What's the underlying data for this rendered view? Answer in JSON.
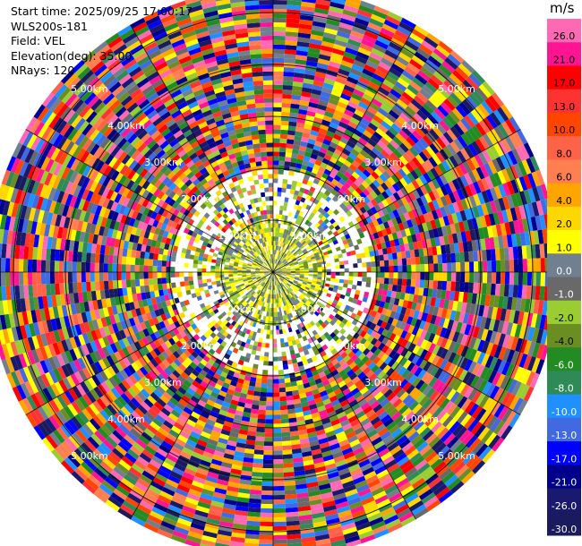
{
  "header": {
    "start_time": "Start time: 2025/09/25 17:00:17",
    "instrument": "WLS200s-181",
    "field": "Field: VEL",
    "elevation": "Elevation(deg): 35.00",
    "nrays": "NRays: 120"
  },
  "chart_data": {
    "type": "heatmap",
    "projection": "polar (PPI)",
    "field": "VEL",
    "nrays": 120,
    "elevation_deg": 35.0,
    "range_rings_km": [
      1.0,
      2.0,
      3.0,
      4.0,
      5.0
    ],
    "range_ring_labels": [
      "1.00km",
      "2.00km",
      "3.00km",
      "4.00km",
      "5.00km"
    ],
    "max_range_km": 5.5,
    "colorbar": {
      "unit": "m/s",
      "ticks": [
        "26.0",
        "21.0",
        "17.0",
        "13.0",
        "10.0",
        "8.0",
        "6.0",
        "4.0",
        "2.0",
        "1.0",
        "0.0",
        "-1.0",
        "-2.0",
        "-4.0",
        "-6.0",
        "-8.0",
        "-10.0",
        "-13.0",
        "-17.0",
        "-21.0",
        "-26.0",
        "-30.0"
      ],
      "colors": [
        "#ff69b4",
        "#ff1493",
        "#ff0000",
        "#ff3232",
        "#ff4500",
        "#ff6347",
        "#ff7f50",
        "#ffa500",
        "#ffd700",
        "#ffff00",
        "#708090",
        "#696969",
        "#9acd32",
        "#6b8e23",
        "#228b22",
        "#2e8b57",
        "#1e90ff",
        "#4169e1",
        "#0000ff",
        "#00008b",
        "#191970",
        "#1a1a5e"
      ]
    }
  }
}
